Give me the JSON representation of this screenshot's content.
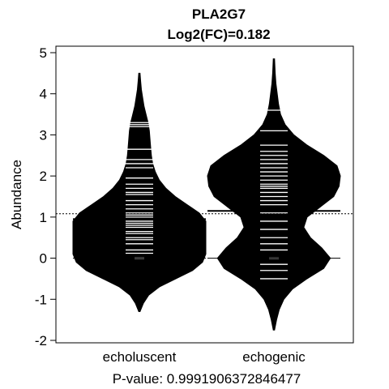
{
  "chart_data": {
    "type": "beanplot",
    "title": "PLA2G7",
    "subtitle": "Log2(FC)=0.182",
    "ylabel": "Abundance",
    "xlabel": "P-value: 0.9991906372846477",
    "ylim": [
      -2,
      5
    ],
    "yticks": [
      -2,
      -1,
      0,
      1,
      2,
      3,
      4,
      5
    ],
    "categories": [
      "echoluscent",
      "echogenic"
    ],
    "overall_mean_line": 1.08,
    "series": [
      {
        "category": "echoluscent",
        "group_mean": 0.95,
        "density": [
          {
            "y": -1.3,
            "w": 0.01
          },
          {
            "y": -1.1,
            "w": 0.06
          },
          {
            "y": -0.9,
            "w": 0.14
          },
          {
            "y": -0.7,
            "w": 0.3
          },
          {
            "y": -0.5,
            "w": 0.55
          },
          {
            "y": -0.3,
            "w": 0.8
          },
          {
            "y": -0.1,
            "w": 0.95
          },
          {
            "y": 0.1,
            "w": 1.0
          },
          {
            "y": 0.3,
            "w": 1.0
          },
          {
            "y": 0.5,
            "w": 1.0
          },
          {
            "y": 0.7,
            "w": 1.0
          },
          {
            "y": 0.9,
            "w": 1.0
          },
          {
            "y": 1.1,
            "w": 0.9
          },
          {
            "y": 1.3,
            "w": 0.72
          },
          {
            "y": 1.5,
            "w": 0.54
          },
          {
            "y": 1.7,
            "w": 0.4
          },
          {
            "y": 1.9,
            "w": 0.3
          },
          {
            "y": 2.1,
            "w": 0.24
          },
          {
            "y": 2.3,
            "w": 0.2
          },
          {
            "y": 2.5,
            "w": 0.18
          },
          {
            "y": 2.7,
            "w": 0.17
          },
          {
            "y": 2.9,
            "w": 0.16
          },
          {
            "y": 3.1,
            "w": 0.15
          },
          {
            "y": 3.3,
            "w": 0.13
          },
          {
            "y": 3.5,
            "w": 0.1
          },
          {
            "y": 3.7,
            "w": 0.07
          },
          {
            "y": 3.9,
            "w": 0.05
          },
          {
            "y": 4.1,
            "w": 0.03
          },
          {
            "y": 4.3,
            "w": 0.02
          },
          {
            "y": 4.5,
            "w": 0.01
          }
        ],
        "points": [
          0.0,
          0.0,
          0.0,
          0.0,
          0.12,
          0.2,
          0.35,
          0.45,
          0.5,
          0.6,
          0.65,
          0.75,
          0.8,
          0.85,
          0.9,
          1.0,
          1.05,
          1.1,
          1.2,
          1.3,
          1.4,
          1.55,
          1.6,
          1.7,
          1.8,
          1.95,
          2.2,
          2.3,
          2.4,
          2.65,
          3.2,
          3.25,
          3.3
        ]
      },
      {
        "category": "echogenic",
        "group_mean": 1.15,
        "density": [
          {
            "y": -1.75,
            "w": 0.01
          },
          {
            "y": -1.5,
            "w": 0.04
          },
          {
            "y": -1.25,
            "w": 0.08
          },
          {
            "y": -1.0,
            "w": 0.15
          },
          {
            "y": -0.75,
            "w": 0.28
          },
          {
            "y": -0.5,
            "w": 0.5
          },
          {
            "y": -0.25,
            "w": 0.75
          },
          {
            "y": 0.0,
            "w": 0.85
          },
          {
            "y": 0.25,
            "w": 0.72
          },
          {
            "y": 0.5,
            "w": 0.55
          },
          {
            "y": 0.75,
            "w": 0.45
          },
          {
            "y": 1.0,
            "w": 0.5
          },
          {
            "y": 1.25,
            "w": 0.7
          },
          {
            "y": 1.5,
            "w": 0.9
          },
          {
            "y": 1.75,
            "w": 0.98
          },
          {
            "y": 2.0,
            "w": 1.0
          },
          {
            "y": 2.25,
            "w": 0.95
          },
          {
            "y": 2.5,
            "w": 0.75
          },
          {
            "y": 2.75,
            "w": 0.5
          },
          {
            "y": 3.0,
            "w": 0.3
          },
          {
            "y": 3.25,
            "w": 0.17
          },
          {
            "y": 3.5,
            "w": 0.1
          },
          {
            "y": 3.75,
            "w": 0.07
          },
          {
            "y": 4.0,
            "w": 0.05
          },
          {
            "y": 4.25,
            "w": 0.03
          },
          {
            "y": 4.5,
            "w": 0.02
          },
          {
            "y": 4.85,
            "w": 0.01
          }
        ],
        "points": [
          -0.5,
          -0.3,
          -0.15,
          0.0,
          0.0,
          0.0,
          0.2,
          0.35,
          0.5,
          0.7,
          0.9,
          1.1,
          1.3,
          1.4,
          1.5,
          1.6,
          1.7,
          1.75,
          1.8,
          1.9,
          2.0,
          2.1,
          2.2,
          2.3,
          2.4,
          2.5,
          2.6,
          2.75,
          3.1,
          3.6
        ]
      }
    ]
  }
}
